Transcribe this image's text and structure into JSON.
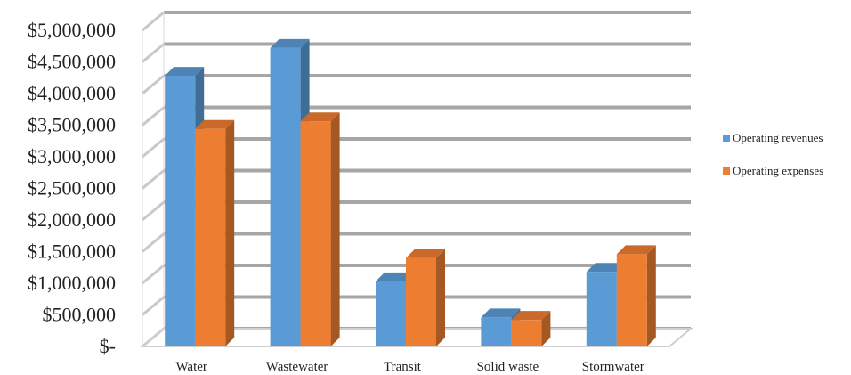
{
  "chart_data": {
    "type": "bar",
    "style": "3d-clustered-column",
    "categories": [
      "Water",
      "Wastewater",
      "Transit",
      "Solid waste",
      "Stormwater"
    ],
    "series": [
      {
        "name": "Operating revenues",
        "color": "#5b9bd5",
        "values": [
          4280000,
          4720000,
          1030000,
          460000,
          1180000
        ]
      },
      {
        "name": "Operating expenses",
        "color": "#ed7d31",
        "values": [
          3440000,
          3560000,
          1400000,
          420000,
          1460000
        ]
      }
    ],
    "yticks": [
      "$-",
      "$500,000",
      "$1,000,000",
      "$1,500,000",
      "$2,000,000",
      "$2,500,000",
      "$3,000,000",
      "$3,500,000",
      "$4,000,000",
      "$4,500,000",
      "$5,000,000"
    ],
    "ylim": [
      0,
      5000000
    ],
    "grid": true,
    "legend_position": "right"
  }
}
